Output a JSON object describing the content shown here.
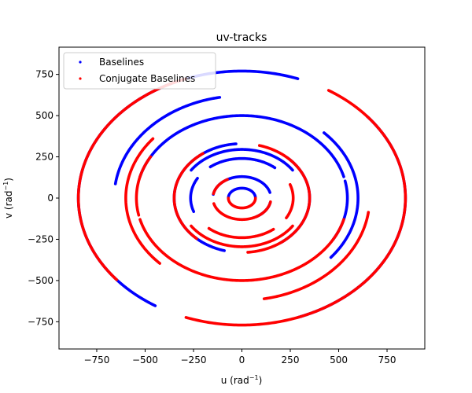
{
  "chart_data": {
    "type": "scatter",
    "title": "uv-tracks",
    "xlabel": "u (rad",
    "xlabel_sup": "−1",
    "xlabel_close": ")",
    "ylabel": "v (rad",
    "ylabel_sup": "−1",
    "ylabel_close": ")",
    "xlim": [
      -945,
      945
    ],
    "ylim": [
      -915,
      915
    ],
    "xticks": [
      -750,
      -500,
      -250,
      0,
      250,
      500,
      750
    ],
    "yticks": [
      -750,
      -500,
      -250,
      0,
      250,
      500,
      750
    ],
    "xtick_labels": [
      "−750",
      "−500",
      "−250",
      "0",
      "250",
      "500",
      "750"
    ],
    "ytick_labels": [
      "−750",
      "−500",
      "−250",
      "0",
      "250",
      "500",
      "750"
    ],
    "legend_position": "upper-left",
    "series": [
      {
        "name": "Baselines",
        "color": "#0000ff",
        "tracks": [
          {
            "cx": 0,
            "cy": 0,
            "rx": 845,
            "ry": 770,
            "from_deg": 70,
            "to_deg": 238
          },
          {
            "cx": 0,
            "cy": 0,
            "rx": 845,
            "ry": 770,
            "from_deg": 290,
            "to_deg": 400
          },
          {
            "cx": 0,
            "cy": 0,
            "rx": 350,
            "ry": 330,
            "from_deg": 95,
            "to_deg": 255
          },
          {
            "cx": 0,
            "cy": 0,
            "rx": 350,
            "ry": 330,
            "from_deg": 305,
            "to_deg": 408
          },
          {
            "cx": 0,
            "cy": 0,
            "rx": 320,
            "ry": 295,
            "from_deg": 35,
            "to_deg": 145
          },
          {
            "cx": 0,
            "cy": 0,
            "rx": 150,
            "ry": 130,
            "from_deg": 15,
            "to_deg": 170
          },
          {
            "cx": 0,
            "cy": 0,
            "rx": 150,
            "ry": 130,
            "from_deg": 300,
            "to_deg": 348
          },
          {
            "cx": 0,
            "cy": 0,
            "rx": 265,
            "ry": 240,
            "from_deg": 50,
            "to_deg": 128
          },
          {
            "cx": 0,
            "cy": 0,
            "rx": 265,
            "ry": 240,
            "from_deg": 150,
            "to_deg": 200
          },
          {
            "cx": 0,
            "cy": 0,
            "rx": 70,
            "ry": 60,
            "from_deg": 0,
            "to_deg": 180
          },
          {
            "cx": 0,
            "cy": 0,
            "rx": 545,
            "ry": 500,
            "from_deg": 15,
            "to_deg": 165
          },
          {
            "cx": 0,
            "cy": 0,
            "rx": 545,
            "ry": 500,
            "from_deg": 330,
            "to_deg": 372
          },
          {
            "cx": 0,
            "cy": 0,
            "rx": 660,
            "ry": 620,
            "from_deg": 100,
            "to_deg": 172
          },
          {
            "cx": 0,
            "cy": 0,
            "rx": 600,
            "ry": 560,
            "from_deg": 320,
            "to_deg": 405
          }
        ]
      },
      {
        "name": "Conjugate Baselines",
        "color": "#ff0000",
        "tracks": [
          {
            "cx": 0,
            "cy": 0,
            "rx": 845,
            "ry": 770,
            "from_deg": 250,
            "to_deg": 418
          },
          {
            "cx": 0,
            "cy": 0,
            "rx": 845,
            "ry": 770,
            "from_deg": 110,
            "to_deg": 220
          },
          {
            "cx": 0,
            "cy": 0,
            "rx": 350,
            "ry": 330,
            "from_deg": 275,
            "to_deg": 435
          },
          {
            "cx": 0,
            "cy": 0,
            "rx": 350,
            "ry": 330,
            "from_deg": 125,
            "to_deg": 228
          },
          {
            "cx": 0,
            "cy": 0,
            "rx": 320,
            "ry": 295,
            "from_deg": 215,
            "to_deg": 325
          },
          {
            "cx": 0,
            "cy": 0,
            "rx": 150,
            "ry": 130,
            "from_deg": 195,
            "to_deg": 350
          },
          {
            "cx": 0,
            "cy": 0,
            "rx": 150,
            "ry": 130,
            "from_deg": 120,
            "to_deg": 168
          },
          {
            "cx": 0,
            "cy": 0,
            "rx": 265,
            "ry": 240,
            "from_deg": 230,
            "to_deg": 308
          },
          {
            "cx": 0,
            "cy": 0,
            "rx": 265,
            "ry": 240,
            "from_deg": 330,
            "to_deg": 380
          },
          {
            "cx": 0,
            "cy": 0,
            "rx": 70,
            "ry": 60,
            "from_deg": 180,
            "to_deg": 360
          },
          {
            "cx": 0,
            "cy": 0,
            "rx": 545,
            "ry": 500,
            "from_deg": 195,
            "to_deg": 345
          },
          {
            "cx": 0,
            "cy": 0,
            "rx": 545,
            "ry": 500,
            "from_deg": 150,
            "to_deg": 192
          },
          {
            "cx": 0,
            "cy": 0,
            "rx": 660,
            "ry": 620,
            "from_deg": 280,
            "to_deg": 352
          },
          {
            "cx": 0,
            "cy": 0,
            "rx": 600,
            "ry": 560,
            "from_deg": 140,
            "to_deg": 225
          }
        ]
      }
    ]
  }
}
